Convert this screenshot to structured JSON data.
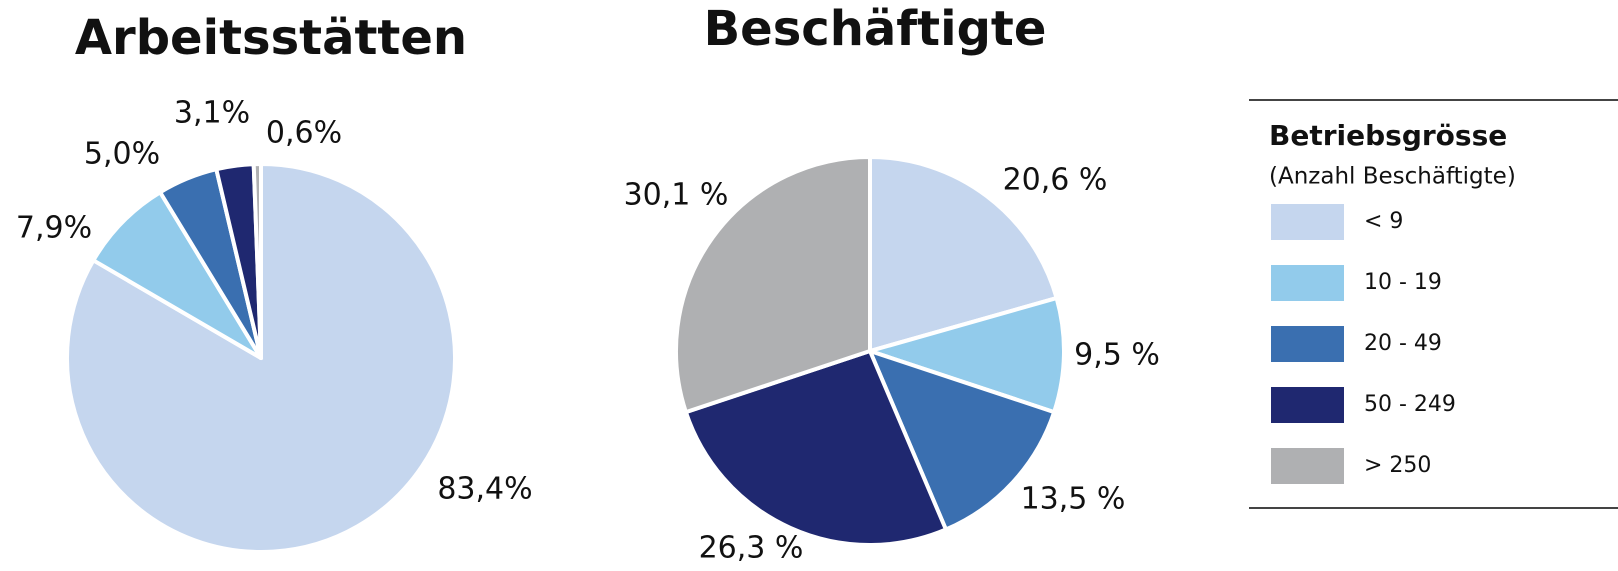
{
  "chart_data": [
    {
      "type": "pie",
      "title": "Arbeitsstätten",
      "categories": [
        "< 9",
        "10 - 19",
        "20 - 49",
        "50 - 249",
        "> 250"
      ],
      "values": [
        83.4,
        7.9,
        5.0,
        3.1,
        0.6
      ],
      "value_labels": [
        "83,4%",
        "7,9%",
        "5,0%",
        "3,1%",
        "0,6%"
      ],
      "colors": [
        "#c5d6ee",
        "#92cbeb",
        "#3a6fb0",
        "#1f2870",
        "#afb0b2"
      ]
    },
    {
      "type": "pie",
      "title": "Beschäftigte",
      "categories": [
        "< 9",
        "10 - 19",
        "20 - 49",
        "50 - 249",
        "> 250"
      ],
      "values": [
        20.6,
        9.5,
        13.5,
        26.3,
        30.1
      ],
      "value_labels": [
        "20,6 %",
        "9,5 %",
        "13,5 %",
        "26,3 %",
        "30,1 %"
      ],
      "colors": [
        "#c5d6ee",
        "#92cbeb",
        "#3a6fb0",
        "#1f2870",
        "#afb0b2"
      ]
    }
  ],
  "legend": {
    "title": "Betriebsgrösse",
    "subtitle": "(Anzahl Beschäftigte)"
  }
}
